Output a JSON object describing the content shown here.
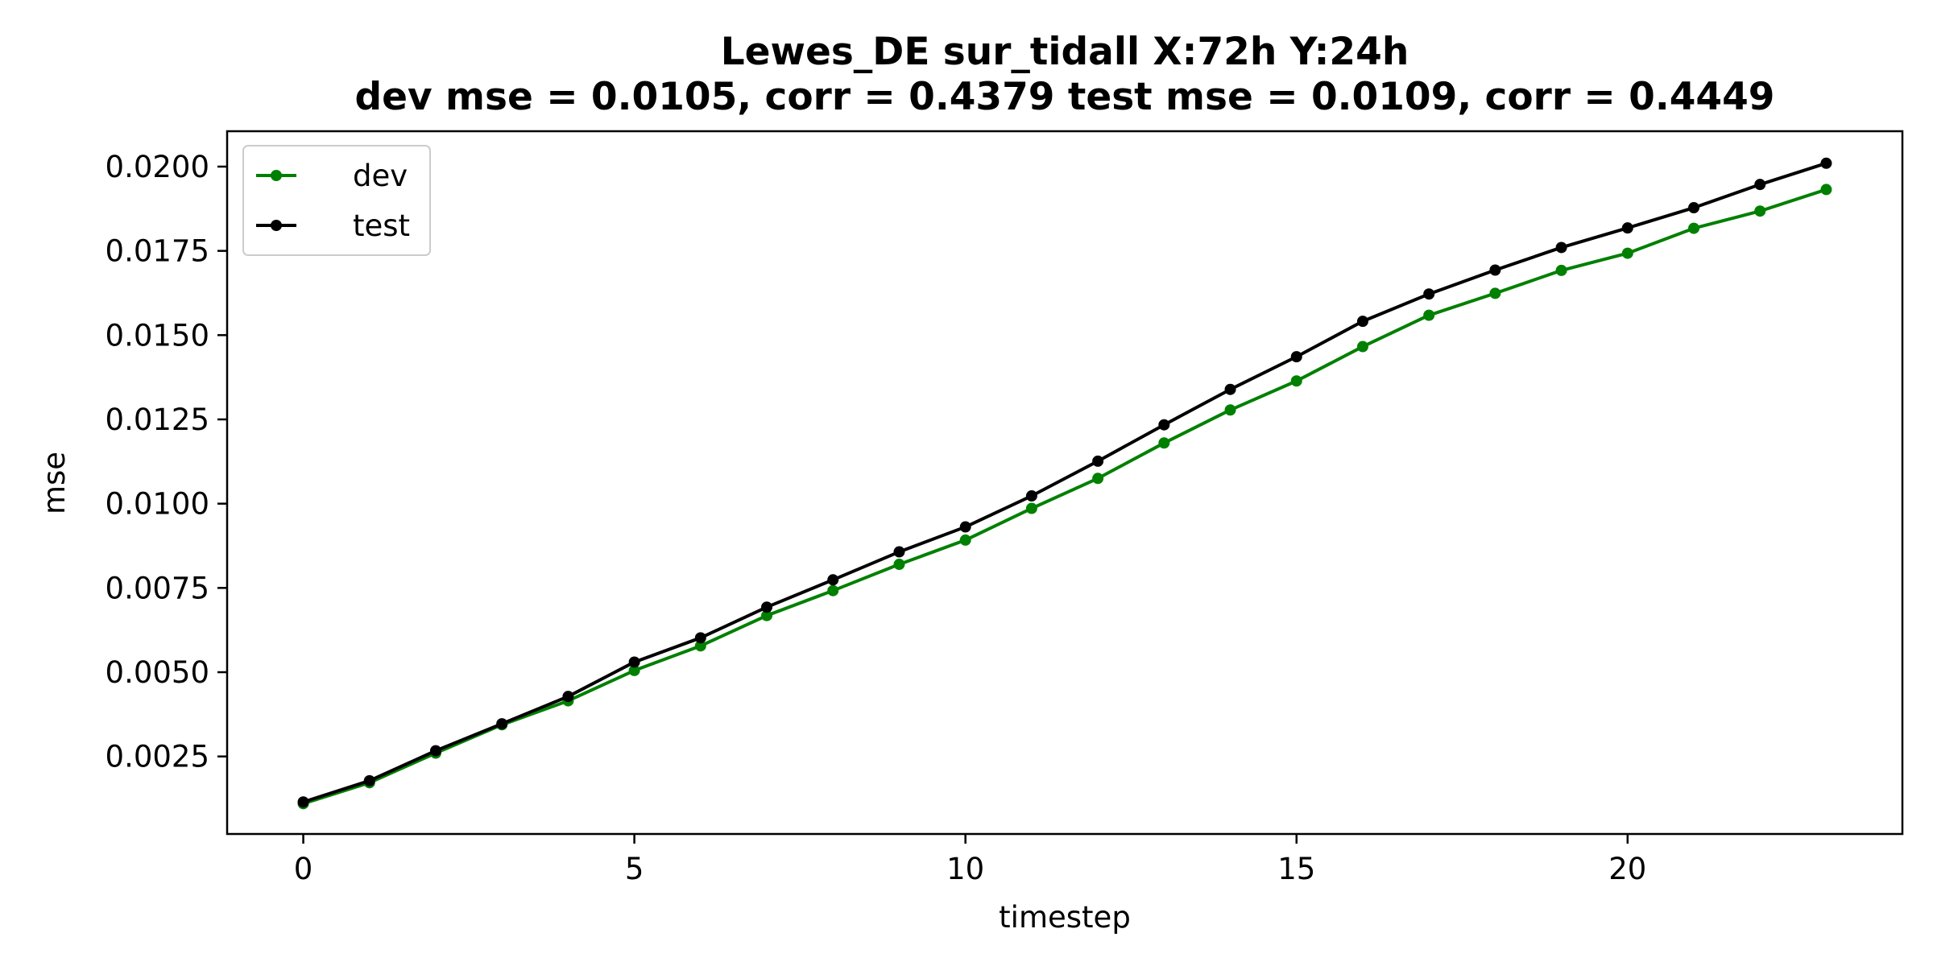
{
  "chart_data": {
    "type": "line",
    "title_line1": "Lewes_DE   sur_tidall   X:72h   Y:24h",
    "title_line2": "dev mse = 0.0105, corr = 0.4379   test mse = 0.0109, corr = 0.4449",
    "xlabel": "timestep",
    "ylabel": "mse",
    "xlim": [
      -1.15,
      24.15
    ],
    "ylim": [
      0.0002,
      0.02105
    ],
    "x_ticks": [
      0,
      5,
      10,
      15,
      20
    ],
    "x_tick_labels": [
      "0",
      "5",
      "10",
      "15",
      "20"
    ],
    "y_ticks": [
      0.0025,
      0.005,
      0.0075,
      0.01,
      0.0125,
      0.015,
      0.0175,
      0.02
    ],
    "y_tick_labels": [
      "0.0025",
      "0.0050",
      "0.0075",
      "0.0100",
      "0.0125",
      "0.0150",
      "0.0175",
      "0.0200"
    ],
    "grid": false,
    "legend_position": "upper-left",
    "x": [
      0,
      1,
      2,
      3,
      4,
      5,
      6,
      7,
      8,
      9,
      10,
      11,
      12,
      13,
      14,
      15,
      16,
      17,
      18,
      19,
      20,
      21,
      22,
      23
    ],
    "series": [
      {
        "name": "dev",
        "color": "#008000",
        "values": [
          0.0011,
          0.00172,
          0.0026,
          0.00344,
          0.00415,
          0.00505,
          0.00578,
          0.00668,
          0.00742,
          0.0082,
          0.00892,
          0.00986,
          0.01075,
          0.0118,
          0.01278,
          0.01364,
          0.01466,
          0.01559,
          0.01624,
          0.01692,
          0.01743,
          0.01817,
          0.01868,
          0.01932
        ]
      },
      {
        "name": "test",
        "color": "#000000",
        "values": [
          0.00115,
          0.00178,
          0.00267,
          0.00347,
          0.00428,
          0.0053,
          0.00602,
          0.00693,
          0.00774,
          0.00857,
          0.00931,
          0.01023,
          0.01126,
          0.01234,
          0.01339,
          0.01436,
          0.01541,
          0.01622,
          0.01693,
          0.0176,
          0.01818,
          0.01878,
          0.01947,
          0.0201
        ]
      }
    ]
  }
}
